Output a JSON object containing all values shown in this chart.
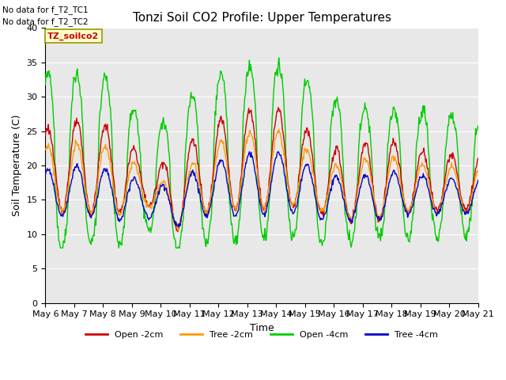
{
  "title": "Tonzi Soil CO2 Profile: Upper Temperatures",
  "xlabel": "Time",
  "ylabel": "Soil Temperature (C)",
  "ylim": [
    0,
    40
  ],
  "no_data_text": [
    "No data for f_T2_TC1",
    "No data for f_T2_TC2"
  ],
  "box_label": "TZ_soilco2",
  "legend_entries": [
    "Open -2cm",
    "Tree -2cm",
    "Open -4cm",
    "Tree -4cm"
  ],
  "line_colors": [
    "#cc0000",
    "#ff9900",
    "#00cc00",
    "#0000cc"
  ],
  "x_tick_labels": [
    "May 6",
    "May 7",
    "May 8",
    "May 9",
    "May 10",
    "May 11",
    "May 12",
    "May 13",
    "May 14",
    "May 15",
    "May 16",
    "May 17",
    "May 18",
    "May 19",
    "May 20",
    "May 21"
  ],
  "bg_color": "#e8e8e8",
  "fig_bg": "#ffffff",
  "title_fontsize": 11,
  "axis_fontsize": 9,
  "tick_fontsize": 8
}
